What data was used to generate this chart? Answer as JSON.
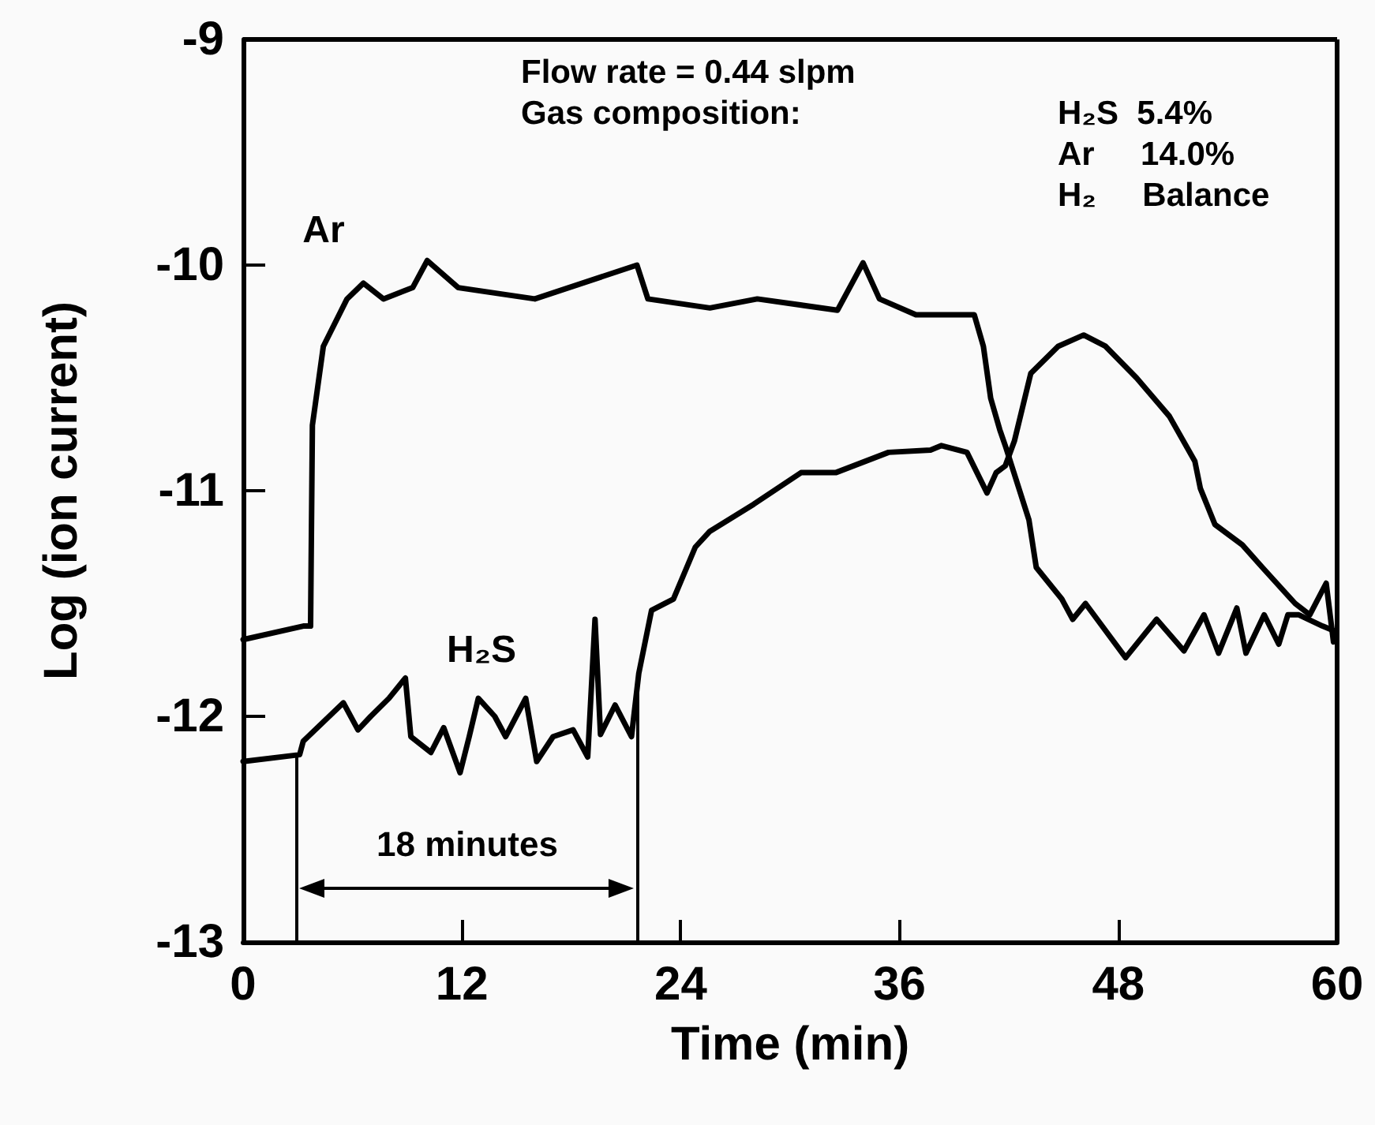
{
  "chart_data": {
    "type": "line",
    "xlabel": "Time (min)",
    "ylabel": "Log (ion current)",
    "xlim": [
      0,
      60
    ],
    "xticks": [
      0,
      12,
      24,
      36,
      48,
      60
    ],
    "ylim": [
      -13,
      -9
    ],
    "yticks": [
      -13,
      -12,
      -11,
      -10,
      -9
    ],
    "grid": false,
    "marker": "none",
    "line_style": "solid",
    "series": [
      {
        "color": "#000000",
        "x": [
          0,
          3.3,
          3.7,
          3.8,
          4.4,
          5.7,
          6.6,
          7.7,
          9.3,
          10.1,
          11.8,
          16,
          21.6,
          22.2,
          25.6,
          28.2,
          32.6,
          34,
          34.9,
          36.9,
          40.1,
          40.6,
          41,
          41.5,
          41.8,
          43.1,
          43.5,
          44.9,
          45.5,
          46.2,
          48.4,
          50.1,
          51.6,
          52.7,
          53.5,
          54.5,
          55,
          56,
          56.8,
          57.3,
          57.9,
          59.2,
          59.8
        ],
        "values": [
          -11.66,
          -11.6,
          -11.6,
          -10.71,
          -10.36,
          -10.15,
          -10.08,
          -10.15,
          -10.1,
          -9.98,
          -10.1,
          -10.15,
          -10,
          -10.15,
          -10.19,
          -10.15,
          -10.2,
          -9.99,
          -10.15,
          -10.22,
          -10.22,
          -10.36,
          -10.59,
          -10.73,
          -10.8,
          -11.13,
          -11.34,
          -11.48,
          -11.57,
          -11.5,
          -11.74,
          -11.57,
          -11.71,
          -11.55,
          -11.72,
          -11.52,
          -11.72,
          -11.55,
          -11.68,
          -11.55,
          -11.55,
          -11.6,
          -11.62
        ]
      },
      {
        "color": "#000000",
        "x": [
          0,
          3.1,
          3.3,
          5.5,
          6.3,
          7,
          8,
          8.9,
          9.2,
          10.3,
          11,
          11.9,
          12.4,
          12.9,
          13.8,
          14.4,
          15.5,
          16.1,
          17,
          18.1,
          18.9,
          19.3,
          19.6,
          20.4,
          21.3,
          21.7,
          22.4,
          23.6,
          24.8,
          25.6,
          28,
          30.6,
          32.5,
          35.4,
          37.7,
          38.3,
          39.7,
          40.8,
          41.3,
          41.8,
          42.3,
          43.2,
          44.7,
          46.1,
          47.3,
          49,
          50.8,
          52.2,
          52.5,
          53.3,
          54.8,
          55.9,
          57.7,
          58.5,
          59.4,
          59.8
        ],
        "values": [
          -12.2,
          -12.17,
          -12.11,
          -11.94,
          -12.06,
          -12,
          -11.92,
          -11.83,
          -12.09,
          -12.16,
          -12.05,
          -12.25,
          -12.09,
          -11.92,
          -12,
          -12.09,
          -11.92,
          -12.2,
          -12.09,
          -12.06,
          -12.18,
          -11.57,
          -12.08,
          -11.95,
          -12.09,
          -11.81,
          -11.53,
          -11.48,
          -11.25,
          -11.18,
          -11.06,
          -10.92,
          -10.92,
          -10.83,
          -10.82,
          -10.8,
          -10.83,
          -11.01,
          -10.92,
          -10.89,
          -10.78,
          -10.48,
          -10.36,
          -10.31,
          -10.36,
          -10.5,
          -10.67,
          -10.87,
          -10.99,
          -11.15,
          -11.24,
          -11.34,
          -11.5,
          -11.55,
          -11.41,
          -11.67
        ]
      }
    ],
    "ref_lines": [
      {
        "axis": "x",
        "value": 2.9,
        "color": "#000000"
      },
      {
        "axis": "x",
        "value": 21.6,
        "color": "#000000"
      }
    ],
    "annotations": [
      "Ar",
      "H₂S",
      "18 minutes",
      "Flow rate = 0.44 slpm",
      "Gas composition:",
      "H₂S  5.4%",
      "Ar     14.0%",
      "H₂     Balance"
    ]
  }
}
